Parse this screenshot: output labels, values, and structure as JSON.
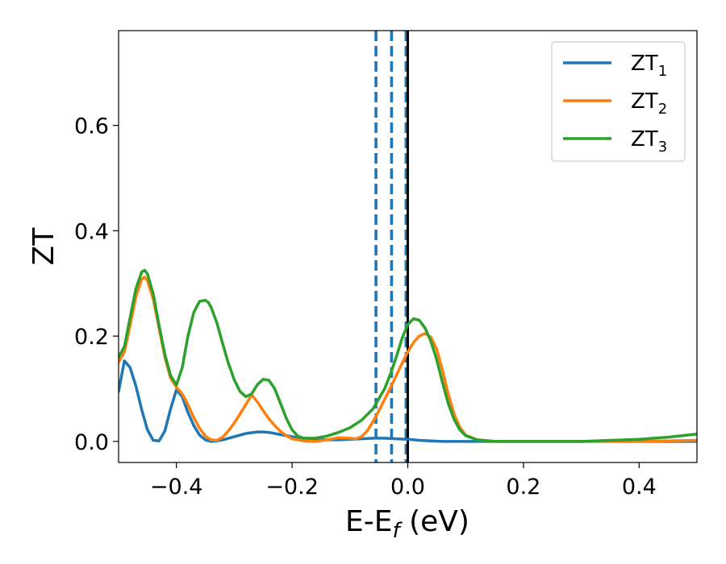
{
  "chart_data": {
    "type": "line",
    "xlabel": "E-E",
    "xlabel_sub": "f",
    "xlabel_unit": " (eV)",
    "ylabel": "ZT",
    "xlim": [
      -0.5,
      0.5
    ],
    "ylim": [
      -0.04,
      0.78
    ],
    "xticks": [
      -0.4,
      -0.2,
      0.0,
      0.2,
      0.4
    ],
    "xtick_labels": [
      "−0.4",
      "−0.2",
      "0.0",
      "0.2",
      "0.4"
    ],
    "yticks": [
      0.0,
      0.2,
      0.4,
      0.6
    ],
    "ytick_labels": [
      "0.0",
      "0.2",
      "0.4",
      "0.6"
    ],
    "grid": false,
    "legend_position": "top-right",
    "vlines": [
      {
        "x": -0.055,
        "style": "dashed",
        "color": "#1f77b4"
      },
      {
        "x": -0.028,
        "style": "dashed",
        "color": "#1f77b4"
      },
      {
        "x": -0.003,
        "style": "dashed",
        "color": "#1f77b4"
      },
      {
        "x": 0.0,
        "style": "solid",
        "color": "#000000"
      }
    ],
    "series": [
      {
        "name": "ZT",
        "subscript": "1",
        "color": "#1f77b4",
        "x": [
          -0.5,
          -0.49,
          -0.48,
          -0.47,
          -0.46,
          -0.45,
          -0.44,
          -0.43,
          -0.42,
          -0.41,
          -0.4,
          -0.39,
          -0.38,
          -0.37,
          -0.36,
          -0.35,
          -0.34,
          -0.33,
          -0.32,
          -0.3,
          -0.28,
          -0.26,
          -0.25,
          -0.24,
          -0.22,
          -0.2,
          -0.18,
          -0.16,
          -0.14,
          -0.12,
          -0.1,
          -0.08,
          -0.06,
          -0.04,
          -0.02,
          0.0,
          0.02,
          0.04,
          0.06,
          0.08,
          0.1,
          0.15,
          0.2,
          0.3,
          0.4,
          0.5
        ],
        "y": [
          0.095,
          0.153,
          0.14,
          0.105,
          0.06,
          0.022,
          0.002,
          0.001,
          0.02,
          0.062,
          0.098,
          0.085,
          0.055,
          0.03,
          0.012,
          0.003,
          0.0,
          0.001,
          0.003,
          0.009,
          0.015,
          0.018,
          0.018,
          0.017,
          0.013,
          0.009,
          0.006,
          0.004,
          0.003,
          0.003,
          0.004,
          0.005,
          0.006,
          0.006,
          0.005,
          0.004,
          0.002,
          0.001,
          0.0,
          0.0,
          0.0,
          0.0,
          0.0,
          0.0,
          0.0,
          0.0
        ]
      },
      {
        "name": "ZT",
        "subscript": "2",
        "color": "#ff7f0e",
        "x": [
          -0.5,
          -0.49,
          -0.48,
          -0.47,
          -0.46,
          -0.455,
          -0.45,
          -0.44,
          -0.43,
          -0.42,
          -0.41,
          -0.4,
          -0.39,
          -0.38,
          -0.37,
          -0.36,
          -0.35,
          -0.34,
          -0.33,
          -0.32,
          -0.31,
          -0.3,
          -0.29,
          -0.28,
          -0.27,
          -0.26,
          -0.25,
          -0.24,
          -0.23,
          -0.22,
          -0.21,
          -0.2,
          -0.18,
          -0.16,
          -0.14,
          -0.12,
          -0.1,
          -0.09,
          -0.08,
          -0.07,
          -0.06,
          -0.05,
          -0.04,
          -0.03,
          -0.02,
          -0.01,
          0.0,
          0.01,
          0.02,
          0.03,
          0.04,
          0.05,
          0.06,
          0.07,
          0.08,
          0.09,
          0.1,
          0.12,
          0.15,
          0.2,
          0.3,
          0.4,
          0.5
        ],
        "y": [
          0.15,
          0.17,
          0.22,
          0.275,
          0.308,
          0.312,
          0.305,
          0.27,
          0.215,
          0.16,
          0.12,
          0.103,
          0.09,
          0.07,
          0.045,
          0.025,
          0.01,
          0.003,
          0.002,
          0.008,
          0.02,
          0.035,
          0.052,
          0.07,
          0.088,
          0.075,
          0.058,
          0.043,
          0.03,
          0.019,
          0.011,
          0.005,
          0.001,
          0.0,
          0.003,
          0.007,
          0.006,
          0.005,
          0.009,
          0.02,
          0.038,
          0.058,
          0.08,
          0.102,
          0.125,
          0.148,
          0.17,
          0.188,
          0.2,
          0.205,
          0.198,
          0.175,
          0.135,
          0.09,
          0.052,
          0.027,
          0.012,
          0.003,
          0.0,
          0.0,
          0.0,
          0.0,
          0.002
        ]
      },
      {
        "name": "ZT",
        "subscript": "3",
        "color": "#2ca02c",
        "x": [
          -0.5,
          -0.49,
          -0.48,
          -0.47,
          -0.46,
          -0.455,
          -0.45,
          -0.44,
          -0.43,
          -0.42,
          -0.41,
          -0.4,
          -0.39,
          -0.38,
          -0.37,
          -0.36,
          -0.35,
          -0.345,
          -0.34,
          -0.33,
          -0.32,
          -0.31,
          -0.3,
          -0.29,
          -0.28,
          -0.27,
          -0.26,
          -0.25,
          -0.24,
          -0.23,
          -0.22,
          -0.21,
          -0.2,
          -0.19,
          -0.18,
          -0.16,
          -0.14,
          -0.12,
          -0.1,
          -0.08,
          -0.06,
          -0.04,
          -0.03,
          -0.02,
          -0.01,
          0.0,
          0.01,
          0.02,
          0.03,
          0.04,
          0.05,
          0.06,
          0.07,
          0.08,
          0.09,
          0.1,
          0.12,
          0.15,
          0.2,
          0.3,
          0.4,
          0.45,
          0.5
        ],
        "y": [
          0.16,
          0.18,
          0.235,
          0.29,
          0.322,
          0.325,
          0.318,
          0.28,
          0.22,
          0.165,
          0.125,
          0.107,
          0.14,
          0.2,
          0.245,
          0.266,
          0.268,
          0.264,
          0.255,
          0.225,
          0.185,
          0.148,
          0.117,
          0.095,
          0.085,
          0.09,
          0.108,
          0.118,
          0.116,
          0.1,
          0.072,
          0.044,
          0.022,
          0.01,
          0.006,
          0.006,
          0.01,
          0.017,
          0.026,
          0.04,
          0.062,
          0.1,
          0.128,
          0.16,
          0.195,
          0.222,
          0.233,
          0.23,
          0.215,
          0.19,
          0.155,
          0.112,
          0.072,
          0.042,
          0.022,
          0.011,
          0.003,
          0.0,
          0.0,
          0.0,
          0.004,
          0.008,
          0.014
        ]
      }
    ]
  }
}
